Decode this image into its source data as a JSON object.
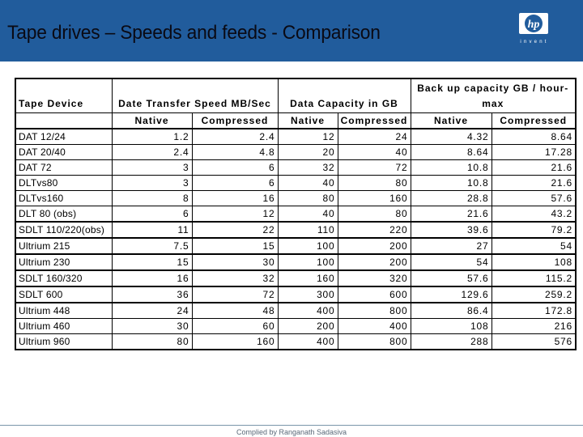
{
  "slide": {
    "title": "Tape drives – Speeds and feeds - Comparison",
    "logo": {
      "name": "hp-logo",
      "text": "hp",
      "tagline": "invent"
    },
    "footer": "Complied by Ranganath Sadasiva",
    "colors": {
      "header_bg": "#215c9c",
      "footer_line": "#7a95aa",
      "footer_text": "#5a6878"
    }
  },
  "table": {
    "headers": {
      "device": "Tape Device",
      "speed_group": "Date Transfer Speed MB/Sec",
      "capacity_group": "Data Capacity in GB",
      "backup_group_line1": "Back up capacity GB / hour-",
      "backup_group_line2": "max",
      "native": "Native",
      "compressed": "Compressed"
    },
    "rows": [
      {
        "device": "DAT 12/24",
        "speed_native": "1.2",
        "speed_compressed": "2.4",
        "cap_native": "12",
        "cap_compressed": "24",
        "backup_native": "4.32",
        "backup_compressed": "8.64"
      },
      {
        "device": "DAT 20/40",
        "speed_native": "2.4",
        "speed_compressed": "4.8",
        "cap_native": "20",
        "cap_compressed": "40",
        "backup_native": "8.64",
        "backup_compressed": "17.28"
      },
      {
        "device": "DAT 72",
        "speed_native": "3",
        "speed_compressed": "6",
        "cap_native": "32",
        "cap_compressed": "72",
        "backup_native": "10.8",
        "backup_compressed": "21.6"
      },
      {
        "device": "DLTvs80",
        "speed_native": "3",
        "speed_compressed": "6",
        "cap_native": "40",
        "cap_compressed": "80",
        "backup_native": "10.8",
        "backup_compressed": "21.6"
      },
      {
        "device": "DLTvs160",
        "speed_native": "8",
        "speed_compressed": "16",
        "cap_native": "80",
        "cap_compressed": "160",
        "backup_native": "28.8",
        "backup_compressed": "57.6"
      },
      {
        "device": "DLT 80 (obs)",
        "speed_native": "6",
        "speed_compressed": "12",
        "cap_native": "40",
        "cap_compressed": "80",
        "backup_native": "21.6",
        "backup_compressed": "43.2"
      },
      {
        "device": "SDLT 110/220(obs)",
        "speed_native": "11",
        "speed_compressed": "22",
        "cap_native": "110",
        "cap_compressed": "220",
        "backup_native": "39.6",
        "backup_compressed": "79.2"
      },
      {
        "device": "Ultrium 215",
        "speed_native": "7.5",
        "speed_compressed": "15",
        "cap_native": "100",
        "cap_compressed": "200",
        "backup_native": "27",
        "backup_compressed": "54"
      },
      {
        "device": "Ultrium 230",
        "speed_native": "15",
        "speed_compressed": "30",
        "cap_native": "100",
        "cap_compressed": "200",
        "backup_native": "54",
        "backup_compressed": "108"
      },
      {
        "device": "SDLT 160/320",
        "speed_native": "16",
        "speed_compressed": "32",
        "cap_native": "160",
        "cap_compressed": "320",
        "backup_native": "57.6",
        "backup_compressed": "115.2"
      },
      {
        "device": "SDLT 600",
        "speed_native": "36",
        "speed_compressed": "72",
        "cap_native": "300",
        "cap_compressed": "600",
        "backup_native": "129.6",
        "backup_compressed": "259.2"
      },
      {
        "device": "Ultrium 448",
        "speed_native": "24",
        "speed_compressed": "48",
        "cap_native": "400",
        "cap_compressed": "800",
        "backup_native": "86.4",
        "backup_compressed": "172.8"
      },
      {
        "device": "Ultrium 460",
        "speed_native": "30",
        "speed_compressed": "60",
        "cap_native": "200",
        "cap_compressed": "400",
        "backup_native": "108",
        "backup_compressed": "216"
      },
      {
        "device": "Ultrium 960",
        "speed_native": "80",
        "speed_compressed": "160",
        "cap_native": "400",
        "cap_compressed": "800",
        "backup_native": "288",
        "backup_compressed": "576"
      }
    ]
  }
}
